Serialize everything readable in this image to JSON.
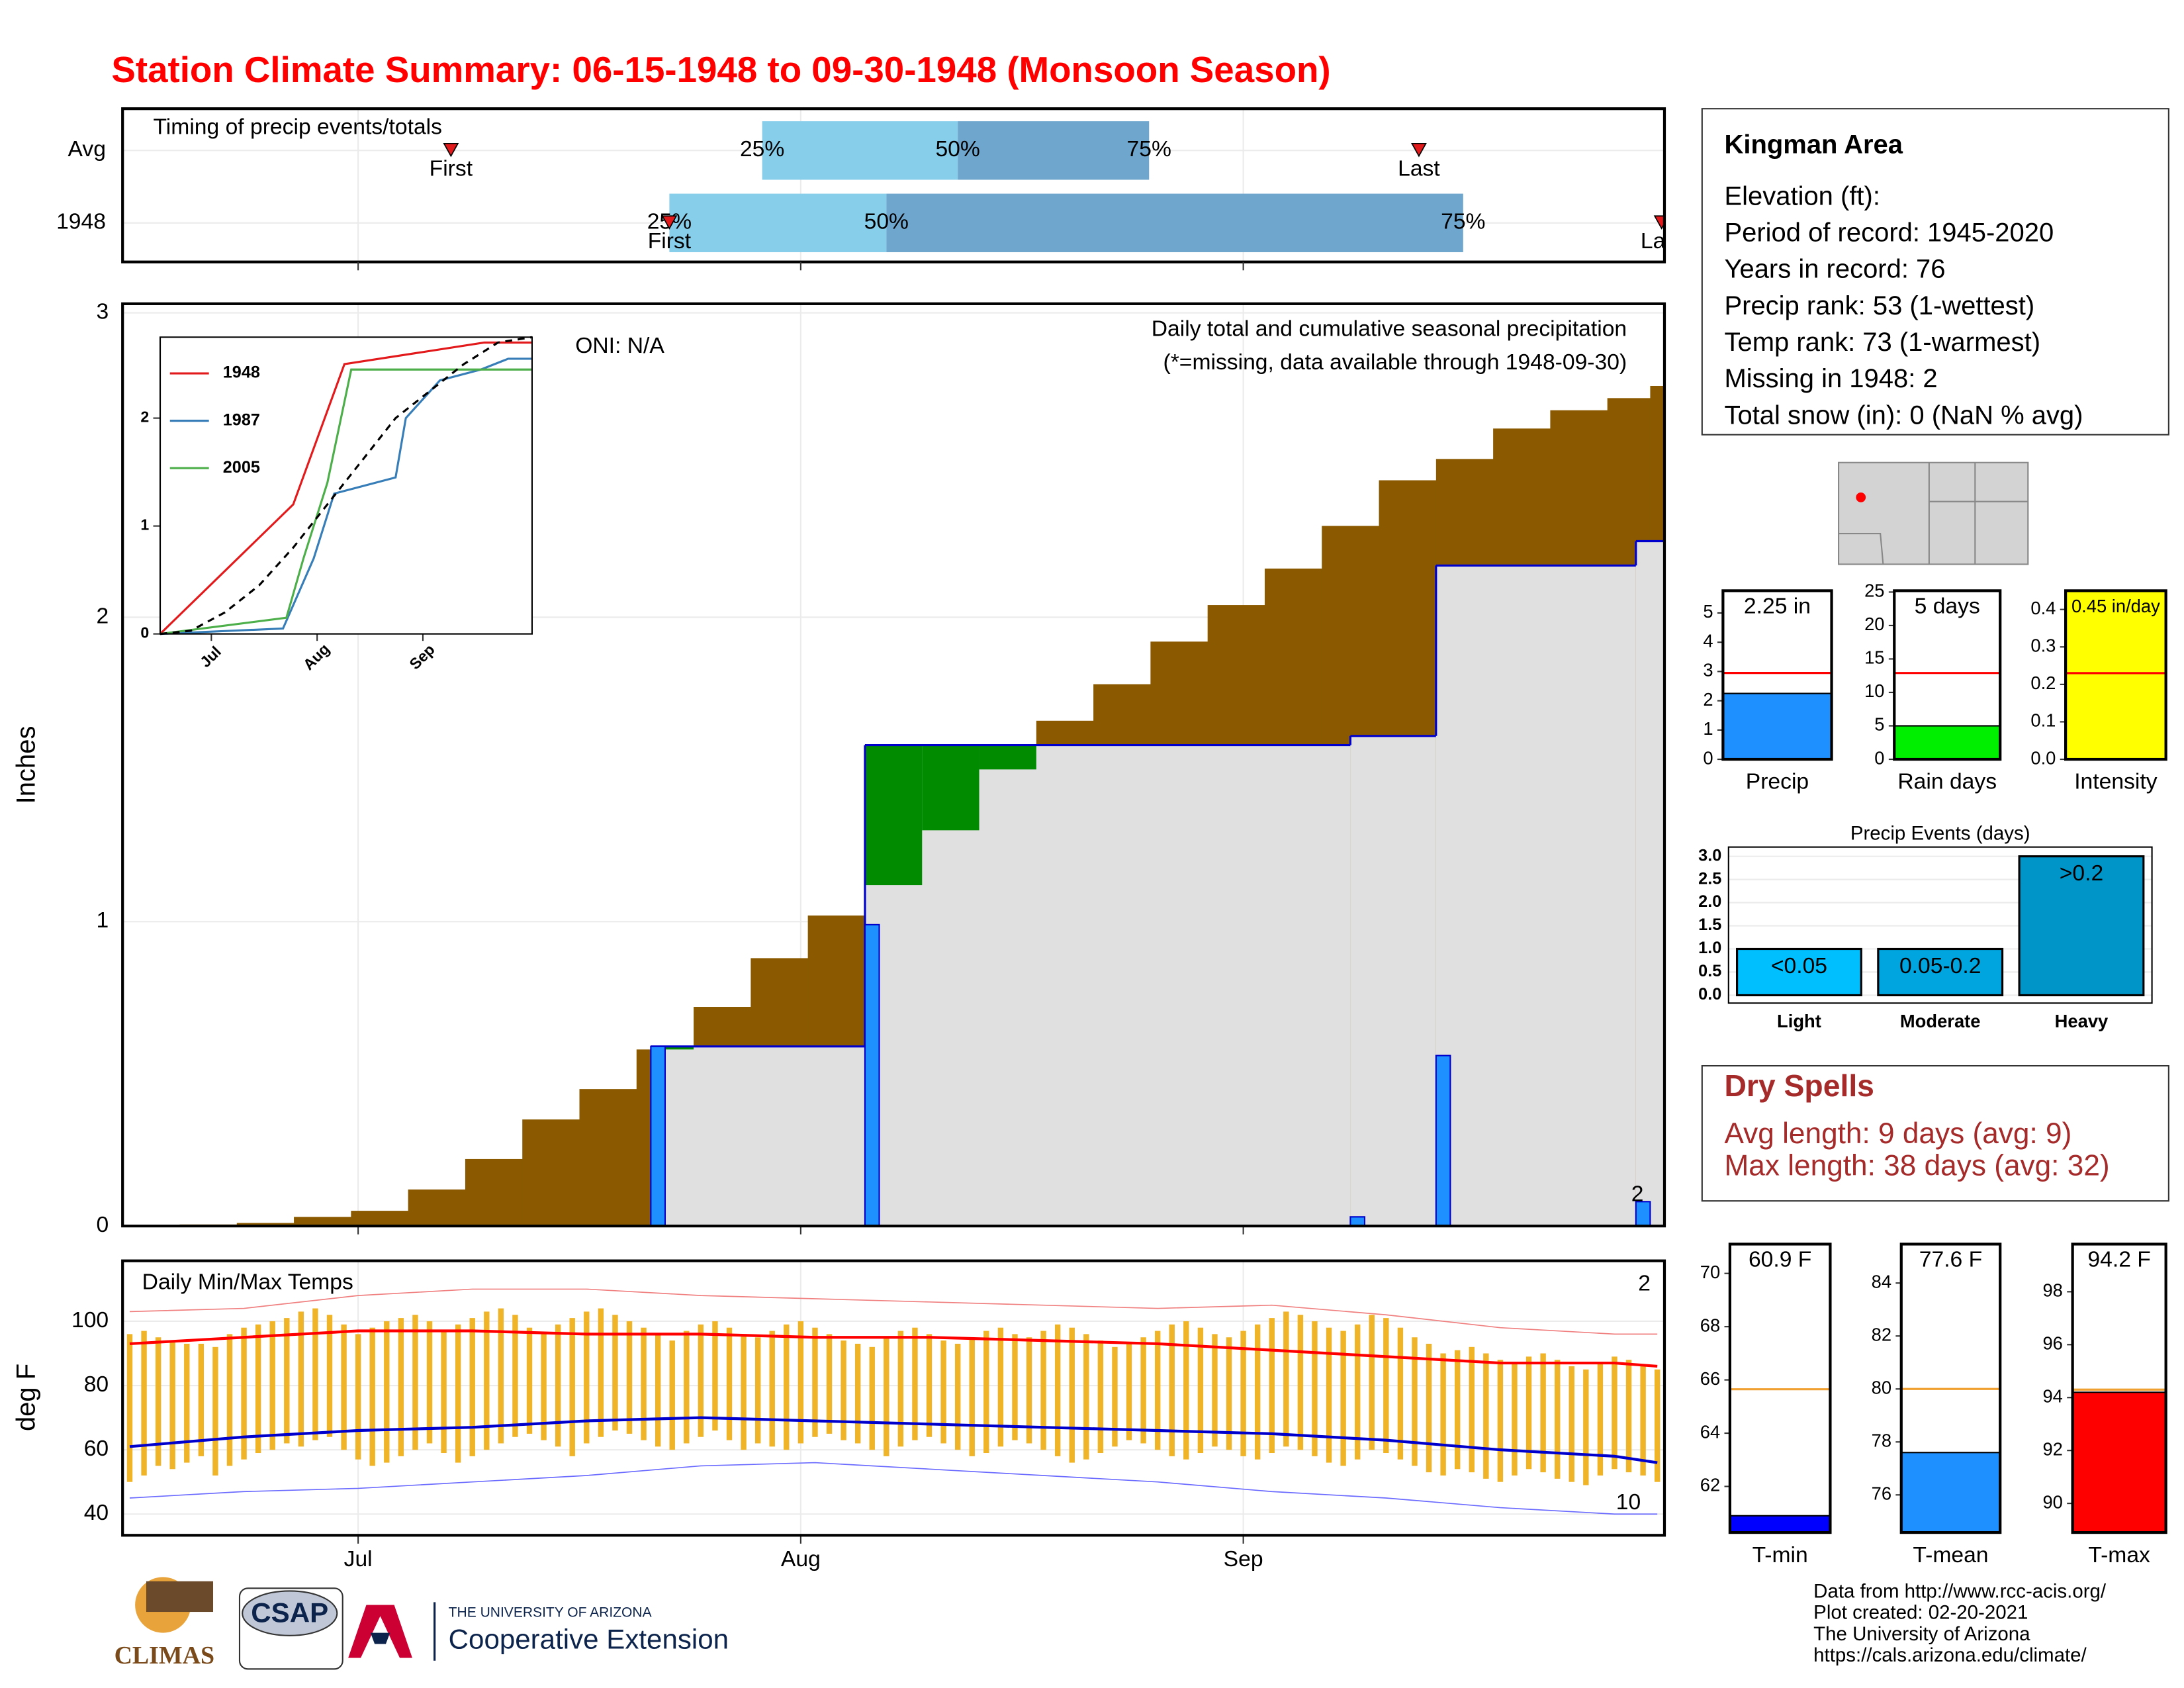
{
  "title": "Station Climate Summary: 06-15-1948 to 09-30-1948 (Monsoon Season)",
  "chart_data": [
    {
      "type": "timing",
      "title": "Timing of precip events/totals",
      "xlim": [
        -0.5,
        107.5
      ],
      "grid_x": [
        16,
        47,
        78
      ],
      "labels": {
        "first": "First",
        "last": "Last",
        "q25": "25%",
        "q50": "50%",
        "q75": "75%"
      },
      "rows": [
        {
          "name": "Avg",
          "first": 22.5,
          "q25": 44.3,
          "q50": 58,
          "q75": 71.4,
          "last": 90.3
        },
        {
          "name": "1948",
          "first": 37.8,
          "q25": 37.8,
          "q50": 53,
          "q75": 93.4,
          "last": 107.3
        }
      ],
      "colors": {
        "low": "#87ceeb",
        "high": "#6ea6cd",
        "marker": "#e31a1c"
      }
    },
    {
      "type": "cumulative",
      "title": "Daily total and cumulative seasonal precipitation",
      "subtitle": "(*=missing, data available through 1948-09-30)",
      "annotation": "ONI: N/A",
      "missing_label": "2",
      "ylabel": "Inches",
      "xlim": [
        -0.5,
        107.5
      ],
      "xticks": [
        {
          "value": 16,
          "label": "Jul"
        },
        {
          "value": 47,
          "label": "Aug"
        },
        {
          "value": 78,
          "label": "Sep"
        }
      ],
      "ylim": [
        0,
        3.03
      ],
      "yticks": [
        0,
        1,
        2,
        3
      ],
      "grid": true,
      "avg": {
        "color": "#8b5a00",
        "x": [
          0,
          4,
          8,
          12,
          16,
          20,
          24,
          28,
          32,
          36,
          40,
          44,
          48,
          52,
          56,
          60,
          64,
          68,
          72,
          76,
          80,
          84,
          88,
          92,
          96,
          100,
          104,
          107
        ],
        "values": [
          0,
          0.005,
          0.01,
          0.03,
          0.05,
          0.12,
          0.22,
          0.35,
          0.45,
          0.58,
          0.72,
          0.88,
          1.02,
          1.12,
          1.3,
          1.5,
          1.66,
          1.78,
          1.92,
          2.04,
          2.16,
          2.3,
          2.45,
          2.52,
          2.62,
          2.68,
          2.72,
          2.76
        ]
      },
      "daily": {
        "color": "#1e90ff",
        "cum_color": "#e0e0e0",
        "above_color": "#008b00",
        "x": [
          37,
          52,
          86,
          92,
          106
        ],
        "values": [
          0.59,
          0.99,
          0.03,
          0.56,
          0.08
        ]
      }
    },
    {
      "type": "line",
      "xlim": [
        1,
        110
      ],
      "xticks": [
        {
          "value": 16,
          "label": "Jul"
        },
        {
          "value": 47,
          "label": "Aug"
        },
        {
          "value": 78,
          "label": "Sep"
        }
      ],
      "ylim": [
        0,
        2.75
      ],
      "yticks": [
        0,
        1,
        2
      ],
      "average": {
        "x": [
          1,
          10,
          20,
          30,
          40,
          50,
          60,
          70,
          80,
          90,
          100,
          110
        ],
        "values": [
          0,
          0.03,
          0.2,
          0.45,
          0.8,
          1.2,
          1.6,
          2.0,
          2.25,
          2.5,
          2.7,
          2.75
        ]
      },
      "series": [
        {
          "name": "1948",
          "color": "#e31a1c",
          "x": [
            1,
            40,
            55,
            96,
            110
          ],
          "values": [
            0,
            1.2,
            2.5,
            2.7,
            2.7
          ]
        },
        {
          "name": "1987",
          "color": "#377eb8",
          "x": [
            1,
            37,
            46,
            52,
            70,
            73,
            83,
            95,
            103,
            110
          ],
          "values": [
            0,
            0.05,
            0.7,
            1.3,
            1.45,
            2.0,
            2.35,
            2.45,
            2.55,
            2.55
          ]
        },
        {
          "name": "2005",
          "color": "#4daf4a",
          "x": [
            1,
            38,
            43,
            47,
            50,
            57,
            110
          ],
          "values": [
            0,
            0.15,
            0.7,
            1.1,
            1.4,
            2.45,
            2.45
          ]
        }
      ]
    },
    {
      "type": "temps",
      "title": "Daily Min/Max Temps",
      "ylabel": "deg F",
      "high_missing": "2",
      "low_missing": "10",
      "xlim": [
        -0.5,
        107.5
      ],
      "ylim": [
        33.4,
        118.8
      ],
      "yticks": [
        40,
        60,
        80,
        100
      ],
      "x": [
        0,
        1,
        2,
        3,
        4,
        5,
        6,
        7,
        8,
        9,
        10,
        11,
        12,
        13,
        14,
        15,
        16,
        17,
        18,
        19,
        20,
        21,
        22,
        23,
        24,
        25,
        26,
        27,
        28,
        29,
        30,
        31,
        32,
        33,
        34,
        35,
        36,
        37,
        38,
        39,
        40,
        41,
        42,
        43,
        44,
        45,
        46,
        47,
        48,
        49,
        50,
        51,
        52,
        53,
        54,
        55,
        56,
        57,
        58,
        59,
        60,
        61,
        62,
        63,
        64,
        65,
        66,
        67,
        68,
        69,
        70,
        71,
        72,
        73,
        74,
        75,
        76,
        77,
        78,
        79,
        80,
        81,
        82,
        83,
        84,
        85,
        86,
        87,
        88,
        89,
        90,
        91,
        92,
        93,
        94,
        95,
        96,
        97,
        98,
        99,
        100,
        101,
        102,
        103,
        104,
        105,
        106,
        107
      ],
      "max": [
        96,
        97,
        95,
        94,
        93,
        93,
        92,
        96,
        98,
        99,
        100,
        101,
        103,
        104,
        102,
        99,
        96,
        98,
        100,
        101,
        102,
        100,
        97,
        99,
        101,
        103,
        104,
        102,
        98,
        96,
        99,
        101,
        103,
        104,
        102,
        100,
        98,
        96,
        94,
        97,
        99,
        100,
        98,
        96,
        95,
        97,
        99,
        100,
        98,
        96,
        94,
        93,
        92,
        95,
        97,
        98,
        96,
        94,
        93,
        95,
        97,
        98,
        96,
        95,
        97,
        99,
        98,
        96,
        94,
        92,
        93,
        95,
        97,
        99,
        100,
        98,
        96,
        95,
        97,
        99,
        101,
        103,
        102,
        100,
        98,
        97,
        99,
        102,
        101,
        98,
        95,
        93,
        90,
        91,
        92,
        90,
        88,
        87,
        89,
        90,
        88,
        86,
        85,
        87,
        89,
        88,
        86,
        85
      ],
      "min": [
        50,
        52,
        55,
        54,
        56,
        58,
        52,
        55,
        57,
        59,
        60,
        62,
        61,
        63,
        64,
        60,
        57,
        55,
        56,
        58,
        60,
        62,
        59,
        56,
        58,
        60,
        62,
        64,
        65,
        63,
        61,
        58,
        62,
        64,
        66,
        65,
        63,
        61,
        60,
        62,
        64,
        66,
        63,
        60,
        62,
        61,
        60,
        62,
        64,
        65,
        63,
        62,
        60,
        58,
        61,
        63,
        64,
        62,
        60,
        58,
        59,
        61,
        63,
        62,
        60,
        58,
        56,
        57,
        59,
        61,
        63,
        62,
        60,
        58,
        57,
        59,
        61,
        60,
        58,
        57,
        59,
        61,
        60,
        58,
        56,
        55,
        57,
        60,
        59,
        57,
        55,
        53,
        52,
        54,
        53,
        51,
        50,
        52,
        54,
        53,
        51,
        50,
        49,
        52,
        54,
        53,
        52,
        50
      ],
      "bar_color": "#f0b429",
      "line_x": [
        0,
        8,
        16,
        24,
        32,
        40,
        48,
        56,
        64,
        72,
        80,
        88,
        96,
        104,
        107
      ],
      "avg_max": [
        93,
        95,
        97,
        97,
        96,
        96,
        95,
        95,
        94,
        93,
        91,
        89,
        87,
        87,
        86
      ],
      "avg_min": [
        61,
        64,
        66,
        67,
        69,
        70,
        69,
        68,
        67,
        66,
        65,
        63,
        60,
        58,
        56
      ],
      "record_high": [
        103,
        104,
        108,
        110,
        110,
        108,
        107,
        106,
        105,
        104,
        105,
        102,
        98,
        96,
        96
      ],
      "record_low": [
        45,
        47,
        48,
        50,
        52,
        55,
        56,
        54,
        52,
        50,
        47,
        45,
        42,
        40,
        40
      ]
    },
    {
      "type": "gauge",
      "category": "Precip",
      "value": 2.25,
      "value_label": "2.25 in",
      "avg": 2.95,
      "ylim": [
        0,
        5.76
      ],
      "yticks": [
        0,
        1,
        2,
        3,
        4,
        5
      ],
      "color": "#1e90ff",
      "avg_color": "#ff0000"
    },
    {
      "type": "gauge",
      "category": "Rain days",
      "value": 5,
      "value_label": "5 days",
      "avg": 12.9,
      "ylim": [
        0,
        25.2
      ],
      "yticks": [
        0,
        5,
        10,
        15,
        20,
        25
      ],
      "color": "#00ee00",
      "avg_color": "#ff0000"
    },
    {
      "type": "gauge",
      "category": "Intensity",
      "value": 0.45,
      "value_label": "0.45 in/day",
      "avg": 0.23,
      "ylim": [
        0,
        0.45
      ],
      "yticks": [
        {
          "value": 0,
          "label": "0.0"
        },
        0.1,
        0.2,
        0.3,
        0.4
      ],
      "color": "#ffff00",
      "avg_color": "#ff0000"
    },
    {
      "type": "events",
      "title": "Precip Events (days)",
      "categories": [
        "Light",
        "Moderate",
        "Heavy"
      ],
      "values": [
        1,
        1,
        3
      ],
      "value_labels": [
        "<0.05",
        "0.05-0.2",
        ">0.2"
      ],
      "ylim": [
        -0.17,
        3.2
      ],
      "yticks": [
        {
          "value": 0,
          "label": "0.0"
        },
        0.5,
        {
          "value": 1,
          "label": "1.0"
        },
        1.5,
        {
          "value": 2,
          "label": "2.0"
        },
        2.5,
        {
          "value": 3,
          "label": "3.0"
        }
      ],
      "colors": [
        "#00bfff",
        "#00a5e0",
        "#0095c8"
      ]
    },
    {
      "type": "gauge",
      "category": "T-min",
      "value": 60.9,
      "value_label": "60.9 F",
      "avg": 65.65,
      "ylim": [
        60.27,
        71.1
      ],
      "yticks": [
        62,
        64,
        66,
        68,
        70
      ],
      "color": "#0000ff",
      "avg_color": "#f0a030"
    },
    {
      "type": "gauge",
      "category": "T-mean",
      "value": 77.6,
      "value_label": "77.6 F",
      "avg": 80,
      "ylim": [
        74.58,
        85.47
      ],
      "yticks": [
        76,
        78,
        80,
        82,
        84
      ],
      "color": "#1e90ff",
      "avg_color": "#f0a030"
    },
    {
      "type": "gauge",
      "category": "T-max",
      "value": 94.2,
      "value_label": "94.2 F",
      "avg": 94.3,
      "ylim": [
        88.9,
        99.8
      ],
      "yticks": [
        90,
        92,
        94,
        96,
        98
      ],
      "color": "#ff0000",
      "avg_color": "#f0a030"
    }
  ],
  "info": {
    "title": "Kingman Area",
    "lines": [
      "Elevation (ft):",
      "Period of record: 1945-2020",
      "Years in record: 76",
      "Precip rank: 53 (1-wettest)",
      "Temp rank: 73 (1-warmest)",
      "Missing in 1948: 2",
      "Total snow (in): 0 (NaN % avg)"
    ]
  },
  "dry_spells": {
    "title": "Dry Spells",
    "lines": [
      "Avg length: 9 days (avg: 9)",
      "Max length: 38 days (avg: 32)"
    ]
  },
  "logos": {
    "climas": "CLIMAS",
    "csap": "CSAP",
    "university": "THE UNIVERSITY OF ARIZONA",
    "extension": "Cooperative Extension"
  },
  "footer": [
    "Data from http://www.rcc-acis.org/",
    "Plot created: 02-20-2021",
    "The University of Arizona",
    "https://cals.arizona.edu/climate/"
  ]
}
